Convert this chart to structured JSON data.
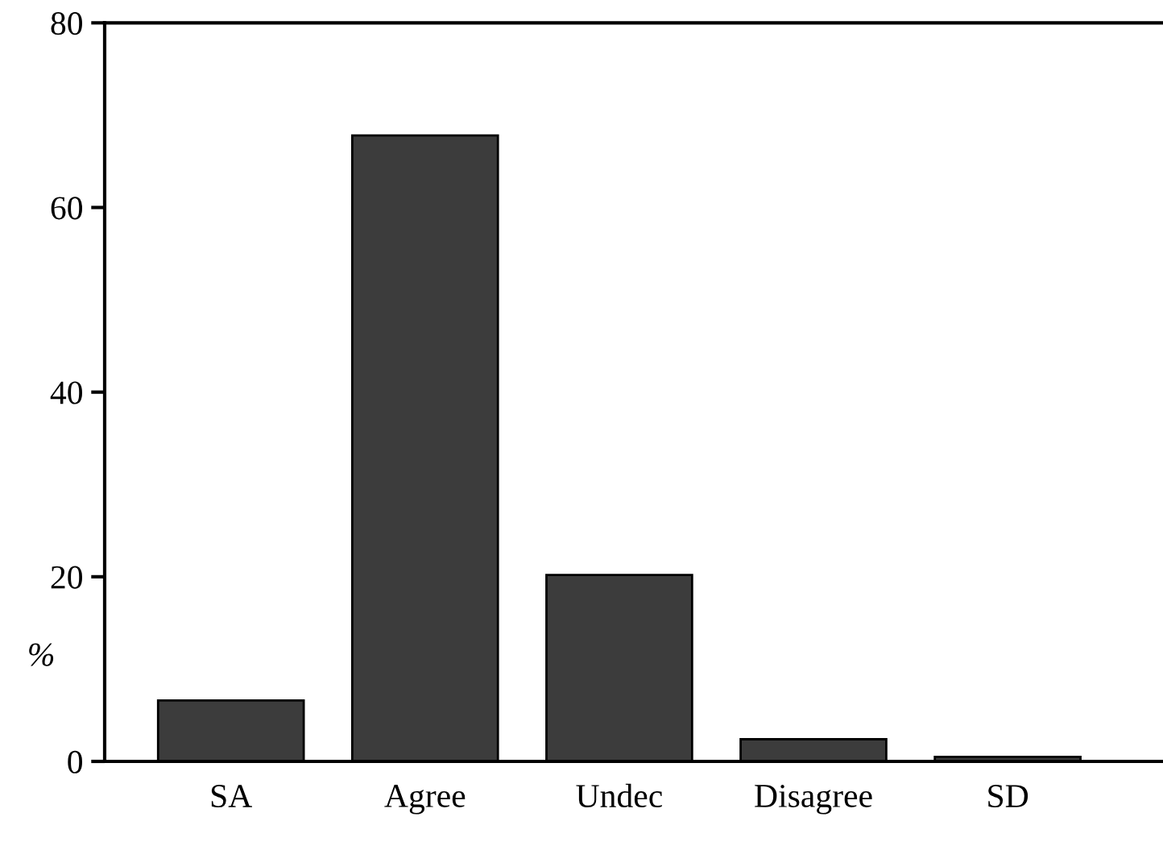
{
  "chart_data": {
    "type": "bar",
    "ylabel": "%",
    "categories": [
      "SA",
      "Agree",
      "Undec",
      "Disagree",
      "SD"
    ],
    "values": [
      6.6,
      67.8,
      20.2,
      2.4,
      0.5
    ],
    "color": "#3c3c3c",
    "ylim": [
      0,
      80
    ],
    "yticks": [
      0,
      20,
      40,
      60,
      80
    ],
    "grid": false,
    "legend": false
  }
}
